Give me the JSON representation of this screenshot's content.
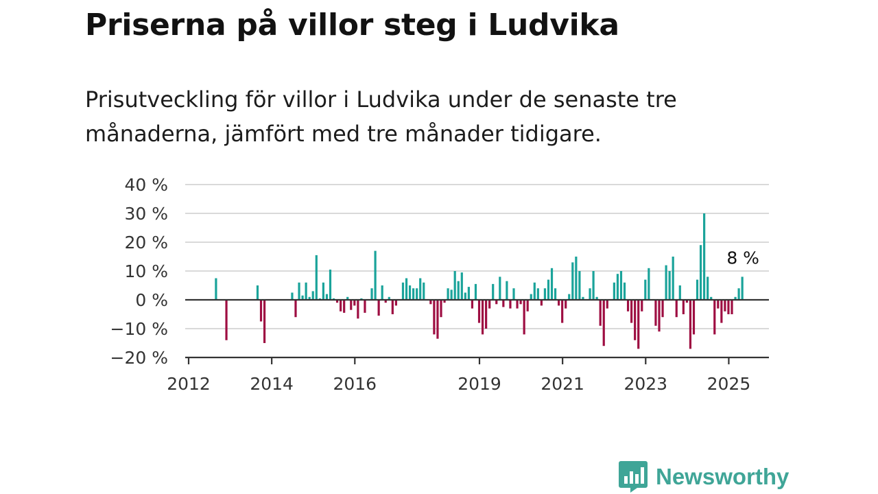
{
  "title": "Priserna på villor steg i Ludvika",
  "subtitle": "Prisutveckling för villor i Ludvika under de senaste tre månaderna, jämfört med tre månader tidigare.",
  "brand": {
    "name": "Newsworthy",
    "icon": "newsworthy-logo-icon",
    "color": "#3fa597"
  },
  "colors": {
    "positive": "#1aa39a",
    "negative": "#9e0e42",
    "grid": "#d9d9d9",
    "axis": "#333333"
  },
  "chart_data": {
    "type": "bar",
    "title": "",
    "xlabel": "",
    "ylabel": "",
    "ylim": [
      -20,
      40
    ],
    "yticks": [
      40,
      30,
      20,
      10,
      0,
      -10,
      -20
    ],
    "ytick_labels": [
      "40 %",
      "30 %",
      "20 %",
      "10 %",
      "0 %",
      "−10 %",
      "−20 %"
    ],
    "xticks": [
      "2012",
      "2014",
      "2016",
      "2019",
      "2021",
      "2023",
      "2025"
    ],
    "xlim": [
      "2012-01",
      "2025-12"
    ],
    "grid": "horizontal",
    "end_label": "8 %",
    "series": [
      {
        "name": "",
        "points": [
          [
            "2012-09",
            7.5
          ],
          [
            "2012-12",
            -14
          ],
          [
            "2013-09",
            5
          ],
          [
            "2013-10",
            -7.5
          ],
          [
            "2013-11",
            -15
          ],
          [
            "2014-07",
            2.5
          ],
          [
            "2014-08",
            -6
          ],
          [
            "2014-09",
            6
          ],
          [
            "2014-10",
            1.5
          ],
          [
            "2014-11",
            6
          ],
          [
            "2014-12",
            1
          ],
          [
            "2015-01",
            3
          ],
          [
            "2015-02",
            15.5
          ],
          [
            "2015-03",
            0.5
          ],
          [
            "2015-04",
            6
          ],
          [
            "2015-05",
            2
          ],
          [
            "2015-06",
            10.5
          ],
          [
            "2015-07",
            0.5
          ],
          [
            "2015-08",
            -1
          ],
          [
            "2015-09",
            -4
          ],
          [
            "2015-10",
            -4.5
          ],
          [
            "2015-11",
            1
          ],
          [
            "2015-12",
            -3.5
          ],
          [
            "2016-01",
            -2
          ],
          [
            "2016-02",
            -6.5
          ],
          [
            "2016-03",
            0.5
          ],
          [
            "2016-04",
            -4.5
          ],
          [
            "2016-06",
            4
          ],
          [
            "2016-07",
            17
          ],
          [
            "2016-08",
            -5.5
          ],
          [
            "2016-09",
            5
          ],
          [
            "2016-10",
            -1
          ],
          [
            "2016-11",
            1
          ],
          [
            "2016-12",
            -5
          ],
          [
            "2017-01",
            -2
          ],
          [
            "2017-03",
            6
          ],
          [
            "2017-04",
            7.5
          ],
          [
            "2017-05",
            5
          ],
          [
            "2017-06",
            4
          ],
          [
            "2017-07",
            4
          ],
          [
            "2017-08",
            7.5
          ],
          [
            "2017-09",
            6
          ],
          [
            "2017-11",
            -1.5
          ],
          [
            "2017-12",
            -12
          ],
          [
            "2018-01",
            -13.5
          ],
          [
            "2018-02",
            -6
          ],
          [
            "2018-03",
            -1
          ],
          [
            "2018-04",
            4
          ],
          [
            "2018-05",
            3.5
          ],
          [
            "2018-06",
            10
          ],
          [
            "2018-07",
            6.5
          ],
          [
            "2018-08",
            9.5
          ],
          [
            "2018-09",
            2.5
          ],
          [
            "2018-10",
            4.5
          ],
          [
            "2018-11",
            -3
          ],
          [
            "2018-12",
            5.5
          ],
          [
            "2019-01",
            -8
          ],
          [
            "2019-02",
            -12
          ],
          [
            "2019-03",
            -10
          ],
          [
            "2019-04",
            -3
          ],
          [
            "2019-05",
            5.5
          ],
          [
            "2019-06",
            -1.5
          ],
          [
            "2019-07",
            8
          ],
          [
            "2019-08",
            -2.5
          ],
          [
            "2019-09",
            6.5
          ],
          [
            "2019-10",
            -3
          ],
          [
            "2019-11",
            4
          ],
          [
            "2019-12",
            -3
          ],
          [
            "2020-01",
            -1.5
          ],
          [
            "2020-02",
            -12
          ],
          [
            "2020-03",
            -4
          ],
          [
            "2020-04",
            2
          ],
          [
            "2020-05",
            6
          ],
          [
            "2020-06",
            4
          ],
          [
            "2020-07",
            -2
          ],
          [
            "2020-08",
            4
          ],
          [
            "2020-09",
            7
          ],
          [
            "2020-10",
            11
          ],
          [
            "2020-11",
            4
          ],
          [
            "2020-12",
            -2
          ],
          [
            "2021-01",
            -8
          ],
          [
            "2021-02",
            -3
          ],
          [
            "2021-03",
            2
          ],
          [
            "2021-04",
            13
          ],
          [
            "2021-05",
            15
          ],
          [
            "2021-06",
            10
          ],
          [
            "2021-07",
            1
          ],
          [
            "2021-09",
            4
          ],
          [
            "2021-10",
            10
          ],
          [
            "2021-11",
            1
          ],
          [
            "2021-12",
            -9
          ],
          [
            "2022-01",
            -16
          ],
          [
            "2022-02",
            -3
          ],
          [
            "2022-04",
            6
          ],
          [
            "2022-05",
            9
          ],
          [
            "2022-06",
            10
          ],
          [
            "2022-07",
            6
          ],
          [
            "2022-08",
            -4
          ],
          [
            "2022-09",
            -8
          ],
          [
            "2022-10",
            -14
          ],
          [
            "2022-11",
            -17
          ],
          [
            "2022-12",
            -4
          ],
          [
            "2023-01",
            7
          ],
          [
            "2023-02",
            11
          ],
          [
            "2023-04",
            -9
          ],
          [
            "2023-05",
            -11
          ],
          [
            "2023-06",
            -6
          ],
          [
            "2023-07",
            12
          ],
          [
            "2023-08",
            10
          ],
          [
            "2023-09",
            15
          ],
          [
            "2023-10",
            -6
          ],
          [
            "2023-11",
            5
          ],
          [
            "2023-12",
            -5
          ],
          [
            "2024-01",
            -1
          ],
          [
            "2024-02",
            -17
          ],
          [
            "2024-03",
            -12
          ],
          [
            "2024-04",
            7
          ],
          [
            "2024-05",
            19
          ],
          [
            "2024-06",
            30
          ],
          [
            "2024-07",
            8
          ],
          [
            "2024-08",
            1
          ],
          [
            "2024-09",
            -12
          ],
          [
            "2024-10",
            -3
          ],
          [
            "2024-11",
            -8
          ],
          [
            "2024-12",
            -4
          ],
          [
            "2025-01",
            -5
          ],
          [
            "2025-02",
            -5
          ],
          [
            "2025-03",
            1
          ],
          [
            "2025-04",
            4
          ],
          [
            "2025-05",
            8
          ]
        ]
      }
    ]
  }
}
